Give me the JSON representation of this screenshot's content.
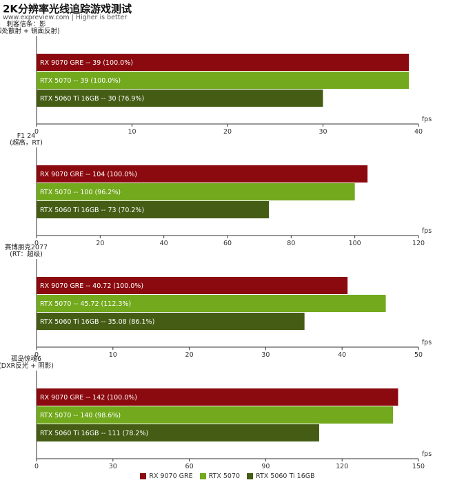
{
  "page": {
    "title": "2K分辨率光线追踪游戏测试",
    "subtitle": "www.expreview.com | Higher is better"
  },
  "colors": {
    "RX 9070 GRE": "#8b0a0f",
    "RTX 5070": "#72a91d",
    "RTX 5060 Ti 16GB": "#445c14"
  },
  "legend": [
    "RX 9070 GRE",
    "RTX 5070",
    "RTX 5060 Ti 16GB"
  ],
  "chart_data": [
    {
      "type": "bar",
      "orientation": "horizontal",
      "title_lines": [
        "刺客信条：影",
        "(四处散射 + 镜面反射)"
      ],
      "xlabel": "fps",
      "xlim": [
        0,
        40
      ],
      "xticks": [
        "0",
        "10",
        "20",
        "30",
        "40"
      ],
      "grid": false,
      "categories": [
        "RX 9070 GRE",
        "RTX 5070",
        "RTX 5060 Ti 16GB"
      ],
      "values": [
        39,
        39,
        30
      ],
      "data_labels": [
        "RX 9070 GRE  --  39 (100.0%)",
        "RTX 5070  --  39 (100.0%)",
        "RTX 5060 Ti 16GB  --  30 (76.9%)"
      ]
    },
    {
      "type": "bar",
      "orientation": "horizontal",
      "title_lines": [
        "F1 24",
        "(超高，RT)"
      ],
      "xlabel": "fps",
      "xlim": [
        0,
        120
      ],
      "xticks": [
        "0",
        "20",
        "40",
        "60",
        "80",
        "100",
        "120"
      ],
      "grid": false,
      "categories": [
        "RX 9070 GRE",
        "RTX 5070",
        "RTX 5060 Ti 16GB"
      ],
      "values": [
        104,
        100,
        73
      ],
      "data_labels": [
        "RX 9070 GRE  --  104 (100.0%)",
        "RTX 5070  --  100 (96.2%)",
        "RTX 5060 Ti 16GB  --  73 (70.2%)"
      ]
    },
    {
      "type": "bar",
      "orientation": "horizontal",
      "title_lines": [
        "赛博朋克2077",
        "(RT：超级)"
      ],
      "xlabel": "fps",
      "xlim": [
        0,
        50
      ],
      "xticks": [
        "0",
        "10",
        "20",
        "30",
        "40",
        "50"
      ],
      "grid": false,
      "categories": [
        "RX 9070 GRE",
        "RTX 5070",
        "RTX 5060 Ti 16GB"
      ],
      "values": [
        40.72,
        45.72,
        35.08
      ],
      "data_labels": [
        "RX 9070 GRE  --  40.72 (100.0%)",
        "RTX 5070  --  45.72 (112.3%)",
        "RTX 5060 Ti 16GB  --  35.08 (86.1%)"
      ]
    },
    {
      "type": "bar",
      "orientation": "horizontal",
      "title_lines": [
        "孤岛惊魂6",
        "(DXR反光 + 阴影)"
      ],
      "xlabel": "fps",
      "xlim": [
        0,
        150
      ],
      "xticks": [
        "0",
        "30",
        "60",
        "90",
        "120",
        "150"
      ],
      "grid": false,
      "categories": [
        "RX 9070 GRE",
        "RTX 5070",
        "RTX 5060 Ti 16GB"
      ],
      "values": [
        142,
        140,
        111
      ],
      "data_labels": [
        "RX 9070 GRE  --  142 (100.0%)",
        "RTX 5070  --  140 (98.6%)",
        "RTX 5060 Ti 16GB  --  111 (78.2%)"
      ]
    }
  ]
}
